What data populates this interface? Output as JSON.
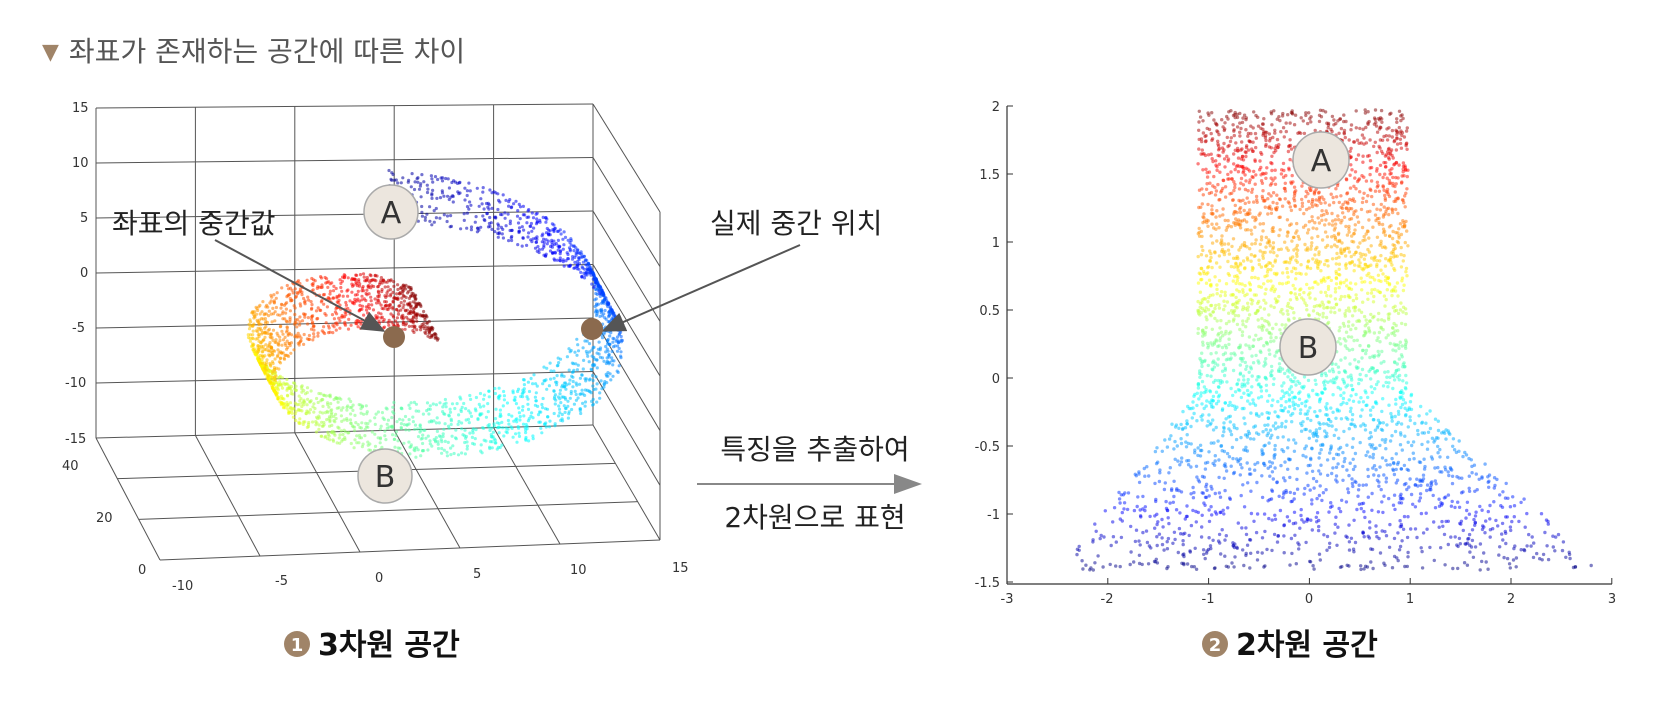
{
  "header": {
    "title": "좌표가 존재하는 공간에 따른 차이"
  },
  "panel_3d": {
    "caption_number": "1",
    "caption": "3차원 공간",
    "z_ticks": [
      "15",
      "10",
      "5",
      "0",
      "-5",
      "-10",
      "-15"
    ],
    "y_ticks": [
      "40",
      "20",
      "0"
    ],
    "x_ticks": [
      "-10",
      "-5",
      "0",
      "5",
      "10",
      "15"
    ],
    "point_a": "A",
    "point_b": "B",
    "label_coord_mid": "좌표의 중간값",
    "label_actual_mid": "실제 중간 위치"
  },
  "arrow": {
    "line1": "특징을 추출하여",
    "line2": "2차원으로 표현"
  },
  "panel_2d": {
    "caption_number": "2",
    "caption": "2차원 공간",
    "y_ticks": [
      "2",
      "1.5",
      "1",
      "0.5",
      "0",
      "-0.5",
      "-1",
      "-1.5"
    ],
    "x_ticks": [
      "-3",
      "-2",
      "-1",
      "0",
      "1",
      "2",
      "3"
    ],
    "point_a": "A",
    "point_b": "B"
  },
  "colors": {
    "accent": "#a08468",
    "marker": "#8b6a4e",
    "badge_fill": "#ece6de"
  }
}
